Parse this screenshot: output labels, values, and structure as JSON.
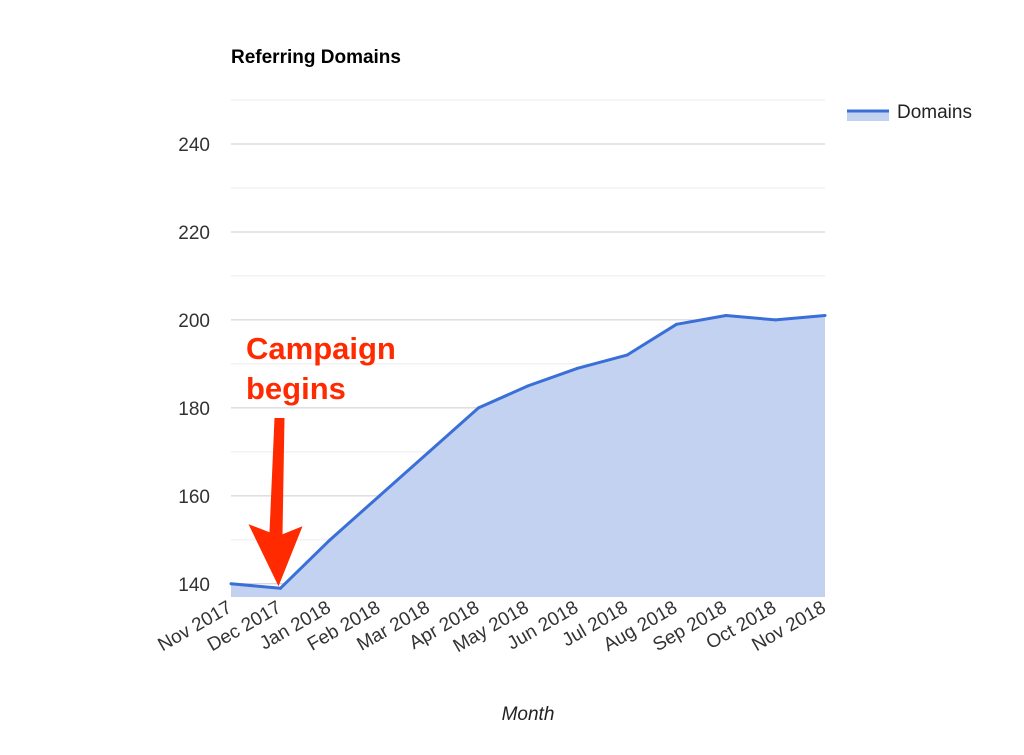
{
  "chart_data": {
    "type": "area",
    "title": "Referring Domains",
    "xlabel": "Month",
    "ylabel": "",
    "categories": [
      "Nov 2017",
      "Dec 2017",
      "Jan 2018",
      "Feb 2018",
      "Mar 2018",
      "Apr 2018",
      "May 2018",
      "Jun 2018",
      "Jul 2018",
      "Aug 2018",
      "Sep 2018",
      "Oct 2018",
      "Nov 2018"
    ],
    "series": [
      {
        "name": "Domains",
        "values": [
          140,
          139,
          150,
          160,
          170,
          180,
          185,
          189,
          192,
          199,
          201,
          200,
          201
        ]
      }
    ],
    "yticks": [
      140,
      160,
      180,
      200,
      220,
      240
    ],
    "ylim": [
      137,
      250
    ],
    "grid": true,
    "legend": "top-right",
    "colors": {
      "line": "#3a6fd8",
      "area": "#c3d2f0",
      "gridline": "#cccccc",
      "minor_gridline": "#ebebeb",
      "annotation": "#ff2a00"
    },
    "annotation": {
      "lines": [
        "Campaign",
        "begins"
      ],
      "target_category": "Dec 2017"
    }
  }
}
